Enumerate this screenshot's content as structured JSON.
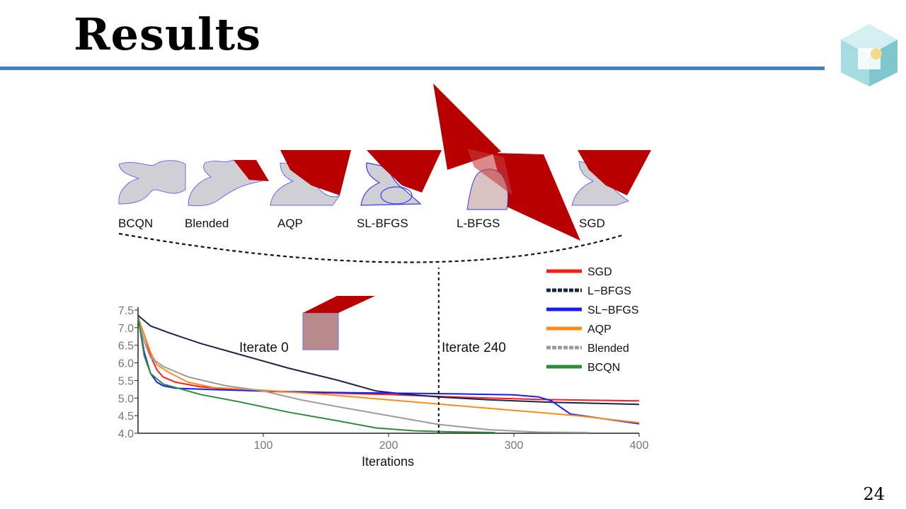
{
  "slide": {
    "title": "Results",
    "page_number": "24"
  },
  "mesh_labels": [
    "BCQN",
    "Blended",
    "AQP",
    "SL-BFGS",
    "L-BFGS",
    "SGD"
  ],
  "annotations": {
    "iterate_0": "Iterate 0",
    "iterate_240": "Iterate 240"
  },
  "colors": {
    "title_rule": "#3f7fcc",
    "mesh_fill": "#b80000",
    "mesh_base": "#cfcfd4"
  },
  "chart_data": {
    "type": "line",
    "xlabel": "Iterations",
    "ylabel": "",
    "xlim": [
      0,
      400
    ],
    "ylim": [
      4.0,
      7.5
    ],
    "x_ticks": [
      100,
      200,
      300,
      400
    ],
    "y_ticks": [
      4.0,
      4.5,
      5.0,
      5.5,
      6.0,
      6.5,
      7.0,
      7.5
    ],
    "legend_position": "top-right",
    "vline_x": 240,
    "series": [
      {
        "name": "SGD",
        "color": "#ff1a1a",
        "dash": false,
        "points": [
          [
            0,
            7.3
          ],
          [
            5,
            6.8
          ],
          [
            10,
            6.2
          ],
          [
            15,
            5.8
          ],
          [
            20,
            5.6
          ],
          [
            30,
            5.45
          ],
          [
            50,
            5.32
          ],
          [
            80,
            5.22
          ],
          [
            120,
            5.17
          ],
          [
            200,
            5.1
          ],
          [
            260,
            5.02
          ],
          [
            320,
            4.96
          ],
          [
            400,
            4.92
          ]
        ]
      },
      {
        "name": "L-BFGS",
        "color": "#1a2547",
        "dash": false,
        "points": [
          [
            0,
            7.35
          ],
          [
            10,
            7.05
          ],
          [
            25,
            6.85
          ],
          [
            50,
            6.55
          ],
          [
            80,
            6.25
          ],
          [
            120,
            5.85
          ],
          [
            160,
            5.5
          ],
          [
            190,
            5.2
          ],
          [
            210,
            5.12
          ],
          [
            240,
            5.03
          ],
          [
            280,
            4.95
          ],
          [
            330,
            4.88
          ],
          [
            400,
            4.82
          ]
        ]
      },
      {
        "name": "SL-BFGS",
        "color": "#1a1aff",
        "dash": false,
        "points": [
          [
            0,
            7.3
          ],
          [
            5,
            6.3
          ],
          [
            10,
            5.7
          ],
          [
            15,
            5.45
          ],
          [
            20,
            5.35
          ],
          [
            30,
            5.28
          ],
          [
            60,
            5.24
          ],
          [
            100,
            5.2
          ],
          [
            150,
            5.16
          ],
          [
            200,
            5.14
          ],
          [
            250,
            5.12
          ],
          [
            300,
            5.09
          ],
          [
            320,
            5.03
          ],
          [
            330,
            4.92
          ],
          [
            345,
            4.55
          ],
          [
            370,
            4.42
          ],
          [
            400,
            4.27
          ]
        ]
      },
      {
        "name": "AQP",
        "color": "#ff8c1a",
        "dash": false,
        "points": [
          [
            0,
            7.3
          ],
          [
            5,
            6.8
          ],
          [
            10,
            6.3
          ],
          [
            15,
            5.95
          ],
          [
            25,
            5.72
          ],
          [
            40,
            5.45
          ],
          [
            60,
            5.3
          ],
          [
            100,
            5.22
          ],
          [
            150,
            5.1
          ],
          [
            200,
            4.95
          ],
          [
            250,
            4.8
          ],
          [
            300,
            4.65
          ],
          [
            350,
            4.5
          ],
          [
            400,
            4.3
          ]
        ]
      },
      {
        "name": "Blended",
        "color": "#9b9b9b",
        "dash": false,
        "points": [
          [
            0,
            7.3
          ],
          [
            5,
            6.6
          ],
          [
            10,
            6.15
          ],
          [
            20,
            5.9
          ],
          [
            40,
            5.6
          ],
          [
            70,
            5.35
          ],
          [
            100,
            5.2
          ],
          [
            130,
            4.95
          ],
          [
            160,
            4.75
          ],
          [
            200,
            4.5
          ],
          [
            240,
            4.25
          ],
          [
            280,
            4.1
          ],
          [
            320,
            4.03
          ],
          [
            360,
            4.02
          ]
        ]
      },
      {
        "name": "BCQN",
        "color": "#2e8b3c",
        "dash": false,
        "points": [
          [
            0,
            7.3
          ],
          [
            5,
            6.2
          ],
          [
            10,
            5.7
          ],
          [
            20,
            5.4
          ],
          [
            30,
            5.3
          ],
          [
            50,
            5.1
          ],
          [
            80,
            4.9
          ],
          [
            120,
            4.6
          ],
          [
            160,
            4.35
          ],
          [
            190,
            4.15
          ],
          [
            220,
            4.07
          ],
          [
            250,
            4.04
          ],
          [
            285,
            4.02
          ]
        ]
      }
    ]
  }
}
